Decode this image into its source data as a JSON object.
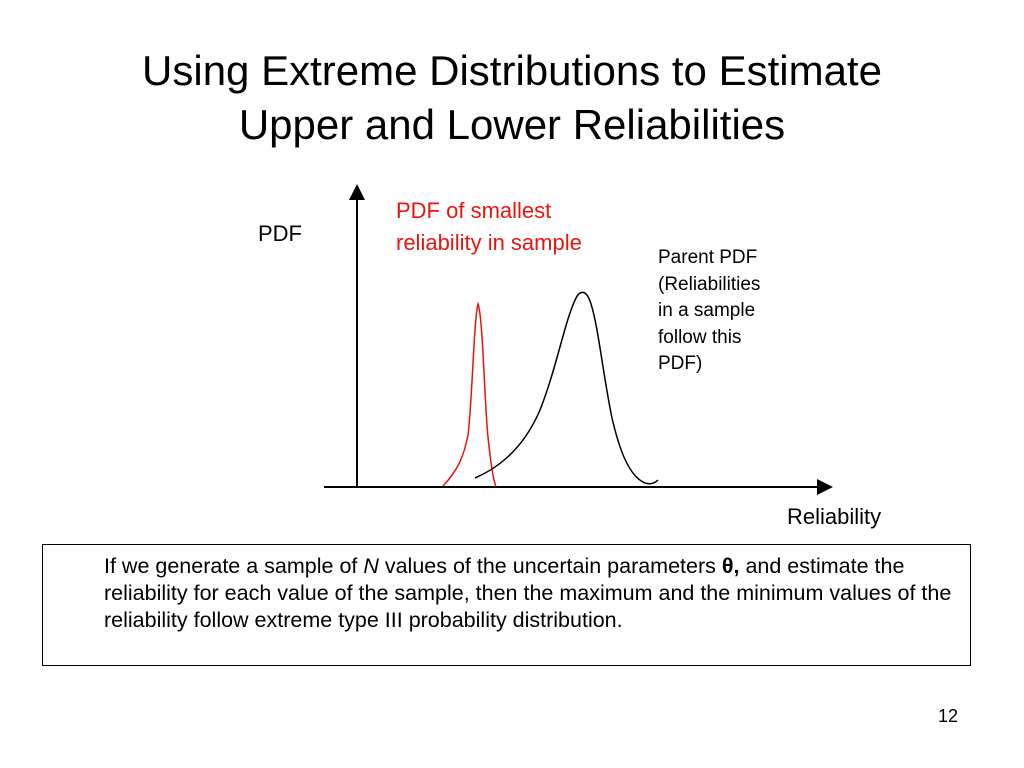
{
  "slide": {
    "title_line1": "Using Extreme Distributions to Estimate",
    "title_line2": "Upper and Lower Reliabilities",
    "page_number": "12"
  },
  "diagram": {
    "y_axis_label": "PDF",
    "x_axis_label": "Reliability",
    "smallest_label_line1": "PDF of smallest",
    "smallest_label_line2": "reliability in sample",
    "parent_label_lines": [
      "Parent PDF",
      "(Reliabilities",
      "in a sample",
      "follow this",
      "PDF)"
    ],
    "colors": {
      "smallest_curve": "#e8150d",
      "parent_curve": "#000000",
      "axes": "#000000"
    }
  },
  "textbox": {
    "part1": "If we generate a sample of ",
    "n_symbol": "N",
    "part2": " values of the uncertain parameters ",
    "theta_symbol": "θ,",
    "part3": " and estimate the reliability for each value of the sample, then the maximum and the minimum values of the reliability follow extreme type III probability distribution."
  }
}
